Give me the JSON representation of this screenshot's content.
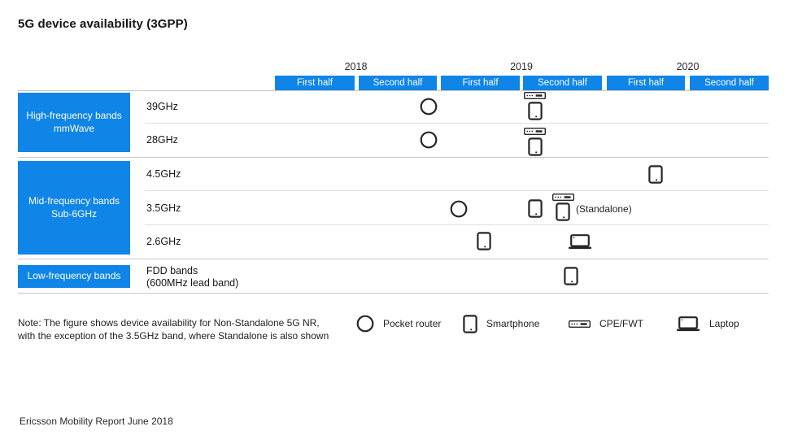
{
  "title": "5G device availability (3GPP)",
  "note": "Note: The figure shows device availability for Non-Standalone 5G NR,\nwith the exception of the 3.5GHz band, where Standalone is also shown",
  "standalone_label": "(Standalone)",
  "source": "Ericsson Mobility Report June 2018",
  "colors": {
    "accent_blue": "#0f85e8",
    "icon_stroke": "#262626",
    "grid_line": "#c9c9c9"
  },
  "timeline": {
    "years": [
      {
        "label": "2018",
        "halves": [
          "First half",
          "Second half"
        ]
      },
      {
        "label": "2019",
        "halves": [
          "First half",
          "Second half"
        ]
      },
      {
        "label": "2020",
        "halves": [
          "First half",
          "Second half"
        ]
      }
    ]
  },
  "bands": [
    {
      "label": "High-frequency bands\nmmWave"
    },
    {
      "label": "Mid-frequency bands\nSub-6GHz"
    },
    {
      "label": "Low-frequency bands"
    }
  ],
  "rows": [
    {
      "label": "39GHz"
    },
    {
      "label": "28GHz"
    },
    {
      "label": "4.5GHz"
    },
    {
      "label": "3.5GHz"
    },
    {
      "label": "2.6GHz"
    },
    {
      "label": "FDD bands\n(600MHz lead band)"
    }
  ],
  "legend": [
    {
      "icon": "pocket-router",
      "label": "Pocket router"
    },
    {
      "icon": "smartphone",
      "label": "Smartphone"
    },
    {
      "icon": "cpe-fwt",
      "label": "CPE/FWT"
    },
    {
      "icon": "laptop",
      "label": "Laptop"
    }
  ],
  "chart_data": {
    "type": "timeline-matrix",
    "title": "5G device availability (3GPP)",
    "x_axis": [
      "2018 First half",
      "2018 Second half",
      "2019 First half",
      "2019 Second half",
      "2020 First half",
      "2020 Second half"
    ],
    "rows": [
      {
        "band": "High-frequency bands mmWave",
        "frequency": "39GHz",
        "events": [
          {
            "period": "2018 Second half",
            "devices": [
              "pocket-router"
            ]
          },
          {
            "period": "2019 Second half",
            "devices": [
              "cpe-fwt",
              "smartphone"
            ]
          }
        ]
      },
      {
        "band": "High-frequency bands mmWave",
        "frequency": "28GHz",
        "events": [
          {
            "period": "2018 Second half",
            "devices": [
              "pocket-router"
            ]
          },
          {
            "period": "2019 Second half",
            "devices": [
              "cpe-fwt",
              "smartphone"
            ]
          }
        ]
      },
      {
        "band": "Mid-frequency bands Sub-6GHz",
        "frequency": "4.5GHz",
        "events": [
          {
            "period": "2020 First half",
            "devices": [
              "smartphone"
            ]
          }
        ]
      },
      {
        "band": "Mid-frequency bands Sub-6GHz",
        "frequency": "3.5GHz",
        "events": [
          {
            "period": "2019 First half",
            "devices": [
              "pocket-router"
            ]
          },
          {
            "period": "2019 Second half",
            "devices": [
              "smartphone"
            ]
          },
          {
            "period": "2019 Second half",
            "devices": [
              "cpe-fwt",
              "smartphone"
            ],
            "annotation": "(Standalone)"
          }
        ]
      },
      {
        "band": "Mid-frequency bands Sub-6GHz",
        "frequency": "2.6GHz",
        "events": [
          {
            "period": "2019 First half",
            "devices": [
              "smartphone"
            ]
          },
          {
            "period": "2019 Second half",
            "devices": [
              "laptop"
            ]
          }
        ]
      },
      {
        "band": "Low-frequency bands",
        "frequency": "FDD bands (600MHz lead band)",
        "events": [
          {
            "period": "2019 Second half",
            "devices": [
              "smartphone"
            ]
          }
        ]
      }
    ]
  }
}
